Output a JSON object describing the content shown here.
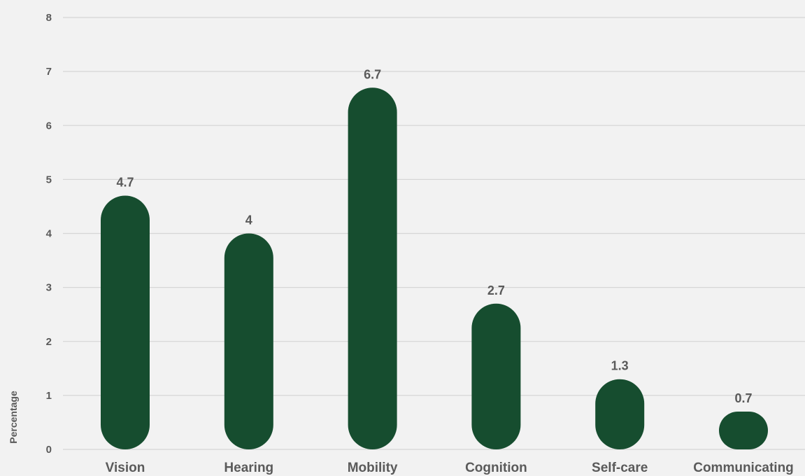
{
  "chart_data": {
    "type": "bar",
    "title": "",
    "xlabel": "",
    "ylabel": "Percentage",
    "categories": [
      "Vision",
      "Hearing",
      "Mobility",
      "Cognition",
      "Self-care",
      "Communicating"
    ],
    "values": [
      4.7,
      4,
      6.7,
      2.7,
      1.3,
      0.7
    ],
    "data_labels": [
      "4.7",
      "4",
      "6.7",
      "2.7",
      "1.3",
      "0.7"
    ],
    "ylim": [
      0,
      8
    ],
    "yticks": [
      "0",
      "1",
      "2",
      "3",
      "4",
      "5",
      "6",
      "7",
      "8"
    ],
    "grid": true,
    "legend": "none",
    "bar_shape": "rounded",
    "colors": {
      "bar": "#164d2f",
      "text": "#5a5a5a",
      "grid": "#d6d6d6",
      "background": "#f2f2f2"
    }
  }
}
